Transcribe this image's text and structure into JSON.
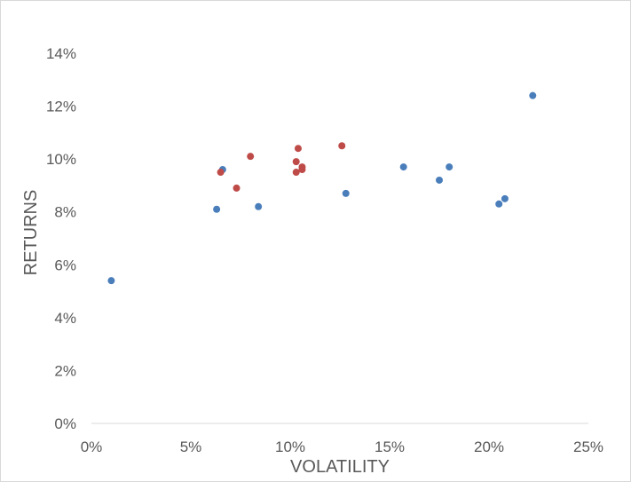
{
  "chart_data": {
    "type": "scatter",
    "title": "",
    "xlabel": "VOLATILITY",
    "ylabel": "RETURNS",
    "xlim": [
      0,
      0.25
    ],
    "ylim": [
      0,
      0.14
    ],
    "x_ticks": [
      0,
      0.05,
      0.1,
      0.15,
      0.2,
      0.25
    ],
    "x_tick_labels": [
      "0%",
      "5%",
      "10%",
      "15%",
      "20%",
      "25%"
    ],
    "y_ticks": [
      0,
      0.02,
      0.04,
      0.06,
      0.08,
      0.1,
      0.12,
      0.14
    ],
    "y_tick_labels": [
      "0%",
      "2%",
      "4%",
      "6%",
      "8%",
      "10%",
      "12%",
      "14%"
    ],
    "grid": false,
    "legend": "none",
    "series": [
      {
        "color": "#4a7ebb",
        "points": [
          {
            "x": 0.01,
            "y": 0.054
          },
          {
            "x": 0.063,
            "y": 0.081
          },
          {
            "x": 0.066,
            "y": 0.096
          },
          {
            "x": 0.084,
            "y": 0.082
          },
          {
            "x": 0.128,
            "y": 0.087
          },
          {
            "x": 0.157,
            "y": 0.097
          },
          {
            "x": 0.175,
            "y": 0.092
          },
          {
            "x": 0.18,
            "y": 0.097
          },
          {
            "x": 0.205,
            "y": 0.083
          },
          {
            "x": 0.208,
            "y": 0.085
          },
          {
            "x": 0.222,
            "y": 0.124
          }
        ]
      },
      {
        "color": "#be4b48",
        "points": [
          {
            "x": 0.065,
            "y": 0.095
          },
          {
            "x": 0.073,
            "y": 0.089
          },
          {
            "x": 0.08,
            "y": 0.101
          },
          {
            "x": 0.103,
            "y": 0.099
          },
          {
            "x": 0.103,
            "y": 0.095
          },
          {
            "x": 0.104,
            "y": 0.104
          },
          {
            "x": 0.106,
            "y": 0.097
          },
          {
            "x": 0.106,
            "y": 0.096
          },
          {
            "x": 0.126,
            "y": 0.105
          }
        ]
      }
    ]
  }
}
